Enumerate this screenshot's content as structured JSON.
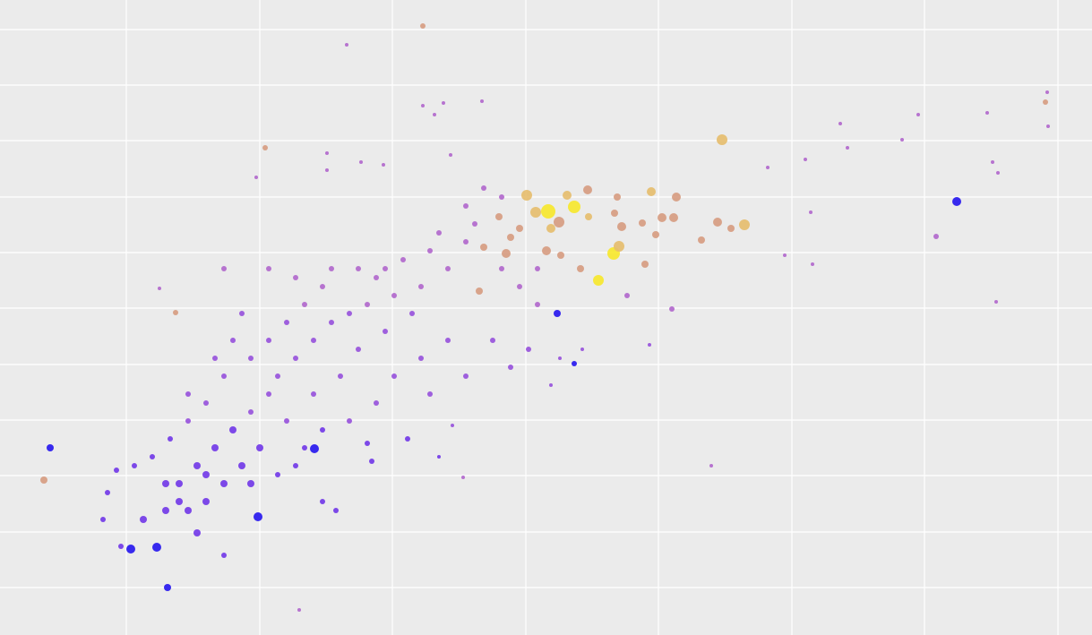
{
  "chart_data": {
    "type": "scatter",
    "grid": true,
    "xlim": [
      0,
      1219
    ],
    "ylim": [
      0,
      709
    ],
    "xticks": [
      141,
      290,
      438,
      587,
      735,
      884,
      1032,
      1181
    ],
    "yticks": [
      53,
      115,
      178,
      240,
      302,
      365,
      427,
      489,
      552,
      614,
      676
    ],
    "series": [
      {
        "color": "#2414ee",
        "x": [
          1068,
          56,
          146,
          175,
          187,
          288,
          351,
          622,
          641
        ],
        "y": [
          484,
          209,
          96,
          98,
          53,
          132,
          208,
          359,
          303
        ],
        "sizes": [
          5,
          4,
          5,
          5,
          4,
          5,
          5,
          4,
          3
        ]
      },
      {
        "color": "#f7e82a",
        "x": [
          612,
          641,
          685,
          668
        ],
        "y": [
          473,
          478,
          426,
          396
        ],
        "sizes": [
          8,
          7,
          7,
          6
        ]
      },
      {
        "color": "#e6bc6c",
        "x": [
          806,
          588,
          633,
          598,
          727,
          831,
          691,
          657,
          615
        ],
        "y": [
          553,
          491,
          491,
          472,
          495,
          458,
          434,
          467,
          454
        ],
        "sizes": [
          6,
          6,
          5,
          6,
          5,
          6,
          6,
          4,
          5
        ]
      },
      {
        "color": "#d69b80",
        "x": [
          472,
          1167,
          296,
          49,
          196,
          656,
          624,
          689,
          755,
          739,
          752,
          801,
          816,
          783,
          732,
          694,
          720,
          717,
          686,
          610,
          565,
          540,
          557,
          570,
          580,
          648,
          626,
          535
        ],
        "y": [
          680,
          595,
          544,
          173,
          360,
          497,
          461,
          489,
          489,
          466,
          466,
          461,
          454,
          441,
          447,
          456,
          414,
          460,
          471,
          429,
          426,
          433,
          467,
          444,
          454,
          409,
          424,
          384
        ],
        "sizes": [
          3,
          3,
          3,
          4,
          3,
          5,
          6,
          4,
          5,
          5,
          5,
          5,
          4,
          4,
          4,
          5,
          4,
          4,
          4,
          5,
          5,
          4,
          4,
          4,
          4,
          4,
          4,
          4
        ]
      },
      {
        "color": "#b066cc",
        "x": [
          387,
          1169,
          1170,
          1025,
          1102,
          938,
          1108,
          1114,
          1112,
          286,
          472,
          485,
          495,
          538,
          365,
          365,
          403,
          428,
          503,
          794,
          334,
          517,
          178,
          907,
          905,
          876,
          857,
          946,
          1007,
          899,
          1045,
          500,
          470,
          440,
          420,
          450,
          480,
          520,
          410,
          490,
          530,
          560,
          580,
          430,
          400,
          360,
          340,
          300,
          330,
          370,
          250,
          520,
          540,
          700,
          750,
          560,
          600,
          600
        ],
        "y": [
          659,
          606,
          568,
          581,
          583,
          571,
          528,
          516,
          372,
          511,
          591,
          581,
          594,
          596,
          538,
          519,
          528,
          525,
          536,
          189,
          28,
          176,
          387,
          414,
          472,
          424,
          522,
          544,
          553,
          531,
          445,
          409,
          389,
          379,
          399,
          419,
          429,
          439,
          369,
          449,
          459,
          409,
          389,
          409,
          409,
          389,
          369,
          409,
          399,
          409,
          409,
          479,
          499,
          379,
          364,
          489,
          409,
          369
        ],
        "sizes": [
          2,
          2,
          2,
          2,
          2,
          2,
          2,
          2,
          2,
          2,
          2,
          2,
          2,
          2,
          2,
          2,
          2,
          2,
          2,
          2,
          2,
          2,
          2,
          2,
          2,
          2,
          2,
          2,
          2,
          2,
          3,
          3,
          3,
          3,
          3,
          3,
          3,
          3,
          3,
          3,
          3,
          3,
          3,
          3,
          3,
          3,
          3,
          3,
          3,
          3,
          3,
          3,
          3,
          3,
          3,
          3,
          3,
          3
        ]
      },
      {
        "color": "#9650dc",
        "x": [
          390,
          370,
          350,
          330,
          310,
          300,
          280,
          460,
          430,
          400,
          380,
          350,
          320,
          320,
          300,
          280,
          250,
          230,
          210,
          520,
          550,
          590,
          570,
          500,
          470,
          440,
          420,
          390,
          270,
          260,
          240,
          210,
          725,
          650,
          615,
          625,
          505,
          480
        ],
        "y": [
          359,
          349,
          329,
          309,
          289,
          269,
          249,
          359,
          339,
          319,
          289,
          269,
          239,
          349,
          329,
          309,
          289,
          259,
          239,
          289,
          329,
          319,
          299,
          329,
          309,
          289,
          259,
          239,
          359,
          329,
          309,
          269,
          324,
          319,
          279,
          309,
          234,
          269
        ],
        "sizes": [
          3,
          3,
          3,
          3,
          3,
          3,
          3,
          3,
          3,
          3,
          3,
          3,
          3,
          3,
          3,
          3,
          3,
          3,
          3,
          3,
          3,
          3,
          3,
          3,
          3,
          3,
          3,
          3,
          3,
          3,
          3,
          3,
          2,
          2,
          2,
          2,
          2,
          3
        ]
      },
      {
        "color": "#7036e8",
        "x": [
          260,
          240,
          220,
          200,
          290,
          270,
          250,
          230,
          210,
          190,
          170,
          150,
          130,
          120,
          115,
          135,
          160,
          185,
          220,
          250,
          280,
          310,
          330,
          360,
          375,
          410,
          415,
          455,
          490,
          360,
          340,
          200,
          185,
          230
        ],
        "y": [
          229,
          209,
          189,
          169,
          209,
          189,
          169,
          149,
          139,
          219,
          199,
          189,
          184,
          159,
          129,
          99,
          129,
          139,
          114,
          89,
          169,
          179,
          189,
          149,
          139,
          214,
          194,
          219,
          199,
          229,
          209,
          149,
          169,
          179
        ],
        "sizes": [
          4,
          4,
          4,
          4,
          4,
          4,
          4,
          4,
          4,
          3,
          3,
          3,
          3,
          3,
          3,
          3,
          4,
          4,
          4,
          3,
          4,
          3,
          3,
          3,
          3,
          3,
          3,
          3,
          2,
          3,
          3,
          4,
          4,
          4
        ]
      }
    ]
  }
}
